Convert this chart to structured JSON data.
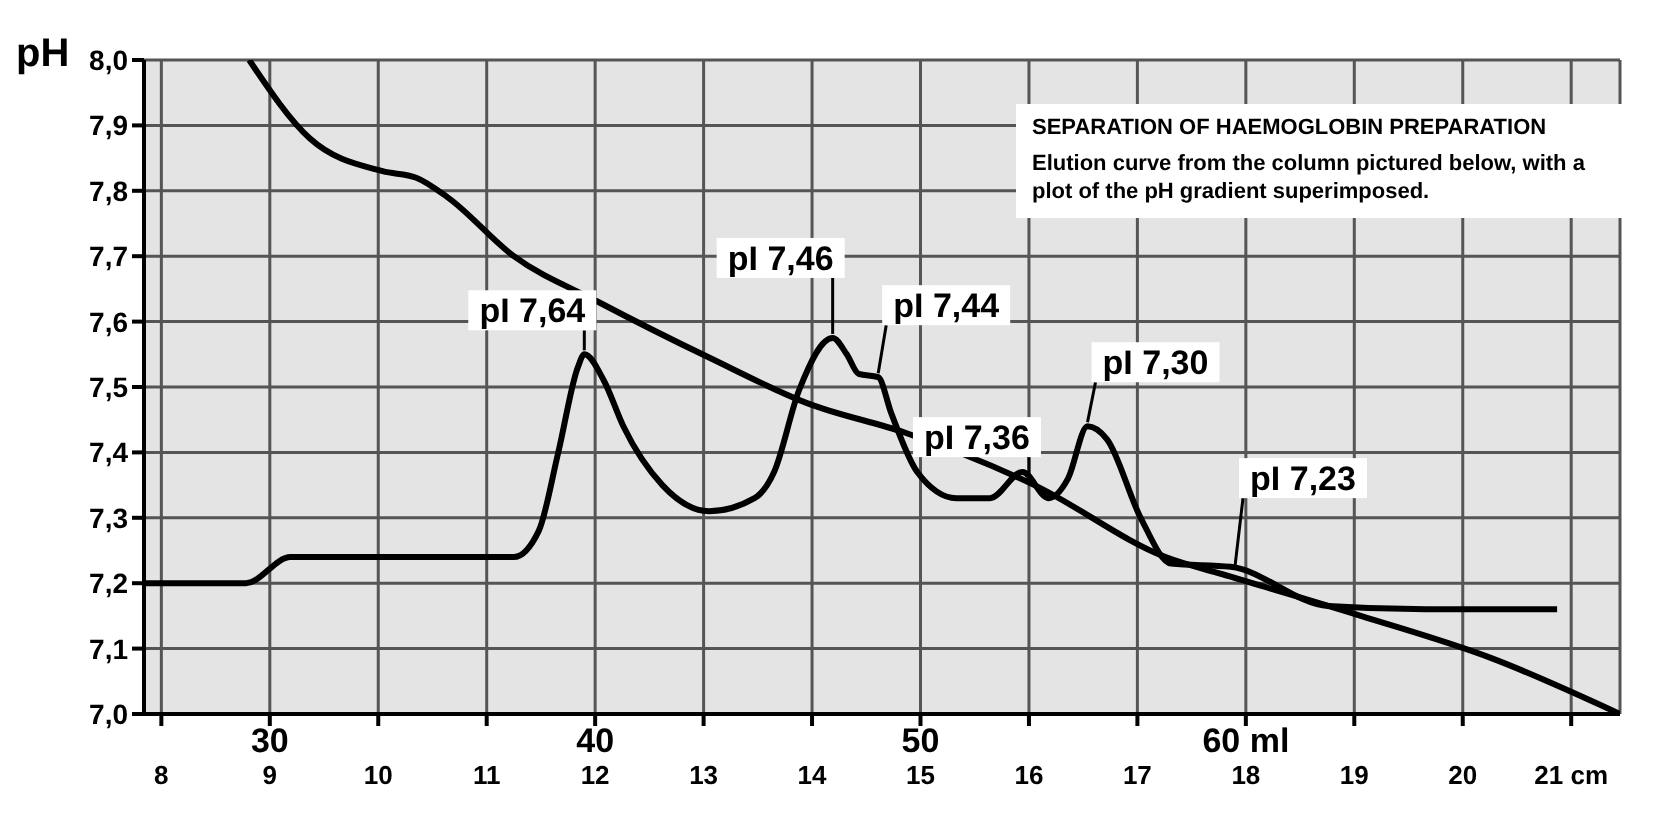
{
  "chart_data": {
    "type": "line",
    "title": "SEPARATION OF HAEMOGLOBIN PREPARATION",
    "ylabel": "pH",
    "annotations": [
      "Elution curve from the column pictured below, with a plot of the pH gradient superimposed.",
      {
        "text": "pI 7,64",
        "x": 11.9,
        "y": 7.55
      },
      {
        "text": "pI 7,46",
        "x": 14.19,
        "y": 7.575
      },
      {
        "text": "pI 7,44",
        "x": 14.61,
        "y": 7.515
      },
      {
        "text": "pI 7,36",
        "x": 16.0,
        "y": 7.35
      },
      {
        "text": "pI 7,30",
        "x": 16.54,
        "y": 7.44
      },
      {
        "text": "pI 7,23",
        "x": 17.9,
        "y": 7.22
      }
    ],
    "series": [
      {
        "color": "#000000",
        "x": [
          8.81,
          9.37,
          10.04,
          10.35,
          10.64,
          11.25,
          12.03,
          13.05,
          13.96,
          14.86,
          16.05,
          17.26,
          17.86,
          19.06,
          20.27,
          21.45
        ],
        "values": [
          8.0,
          7.88,
          7.83,
          7.82,
          7.79,
          7.7,
          7.63,
          7.545,
          7.475,
          7.43,
          7.35,
          7.24,
          7.21,
          7.15,
          7.085,
          7.0
        ]
      },
      {
        "color": "#000000",
        "x": [
          7.84,
          8.78,
          9.19,
          11.25,
          11.48,
          11.66,
          11.84,
          11.9,
          12.08,
          12.26,
          12.62,
          13.05,
          13.47,
          13.65,
          13.88,
          14.19,
          14.32,
          14.43,
          14.61,
          14.73,
          14.97,
          15.33,
          15.64,
          15.94,
          16.18,
          16.36,
          16.54,
          16.72,
          17.03,
          17.31,
          17.86,
          18.76,
          19.66,
          20.87
        ],
        "values": [
          7.2,
          7.2,
          7.24,
          7.24,
          7.28,
          7.4,
          7.53,
          7.55,
          7.51,
          7.44,
          7.35,
          7.31,
          7.33,
          7.37,
          7.495,
          7.575,
          7.55,
          7.52,
          7.515,
          7.46,
          7.37,
          7.33,
          7.33,
          7.37,
          7.33,
          7.36,
          7.44,
          7.42,
          7.3,
          7.23,
          7.225,
          7.165,
          7.16,
          7.16
        ]
      }
    ],
    "xlim": [
      7.84,
      21.45
    ],
    "xticks": [
      8,
      9,
      10,
      11,
      12,
      13,
      14,
      15,
      16,
      17,
      18,
      19,
      20,
      {
        "value": 21,
        "label": "21 cm"
      }
    ],
    "x2lim": [
      26.13,
      71.5
    ],
    "x2ticks": [
      30,
      40,
      50,
      {
        "value": 60,
        "label": "60 ml"
      }
    ],
    "ylim": [
      7.0,
      8.0
    ],
    "yticks": [
      {
        "value": 7.0,
        "label": "7,0"
      },
      {
        "value": 7.1,
        "label": "7,1"
      },
      {
        "value": 7.2,
        "label": "7,2"
      },
      {
        "value": 7.3,
        "label": "7,3"
      },
      {
        "value": 7.4,
        "label": "7,4"
      },
      {
        "value": 7.5,
        "label": "7,5"
      },
      {
        "value": 7.6,
        "label": "7,6"
      },
      {
        "value": 7.7,
        "label": "7,7"
      },
      {
        "value": 7.8,
        "label": "7,8"
      },
      {
        "value": 7.9,
        "label": "7,9"
      },
      {
        "value": 8.0,
        "label": "8,0"
      }
    ],
    "grid": true,
    "line_style": "solid"
  }
}
